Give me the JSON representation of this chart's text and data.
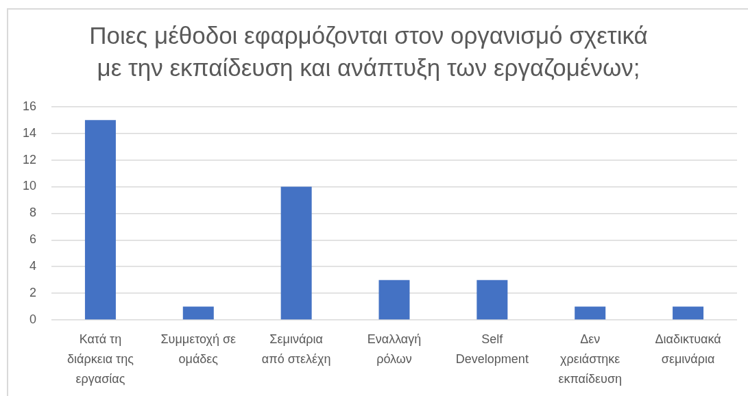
{
  "chart_data": {
    "type": "bar",
    "title": "Ποιες μέθοδοι εφαρμόζονται στον οργανισμό σχετικά με την εκπαίδευση και ανάπτυξη των εργαζομένων;",
    "categories": [
      "Κατά τη διάρκεια της εργασίας",
      "Συμμετοχή σε ομάδες",
      "Σεμινάρια από στελέχη",
      "Εναλλαγή ρόλων",
      "Self Development",
      "Δεν χρειάστηκε εκπαίδευση",
      "Διαδικτυακά σεμινάρια"
    ],
    "values": [
      15,
      1,
      10,
      3,
      3,
      1,
      1
    ],
    "color": "#4472c4",
    "ylim": [
      0,
      16
    ],
    "yticks": [
      0,
      2,
      4,
      6,
      8,
      10,
      12,
      14,
      16
    ],
    "grid": "y"
  }
}
